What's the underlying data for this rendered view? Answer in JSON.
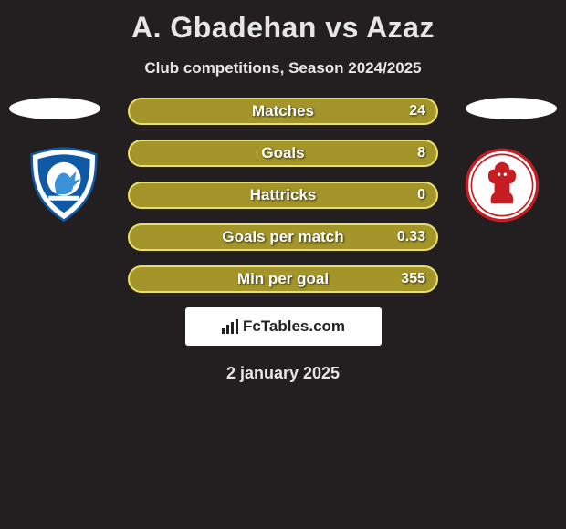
{
  "title": "A. Gbadehan vs Azaz",
  "subtitle": "Club competitions, Season 2024/2025",
  "date": "2 january 2025",
  "footer_brand": "FcTables.com",
  "colors": {
    "background": "#231f20",
    "bar_fill": "#a39529",
    "bar_border": "#eadf6a",
    "ellipse": "#ffffff"
  },
  "bars": [
    {
      "label": "Matches",
      "value": "24"
    },
    {
      "label": "Goals",
      "value": "8"
    },
    {
      "label": "Hattricks",
      "value": "0"
    },
    {
      "label": "Goals per match",
      "value": "0.33"
    },
    {
      "label": "Min per goal",
      "value": "355"
    }
  ],
  "badge_left": {
    "name": "Cardiff City FC",
    "outer_color": "#ffffff",
    "inner_color": "#0f59a6",
    "accent_color": "#3a92d8"
  },
  "badge_right": {
    "name": "Middlesbrough",
    "outer_color": "#ffffff",
    "inner_color": "#c61d23",
    "accent_color": "#8c0f14"
  }
}
